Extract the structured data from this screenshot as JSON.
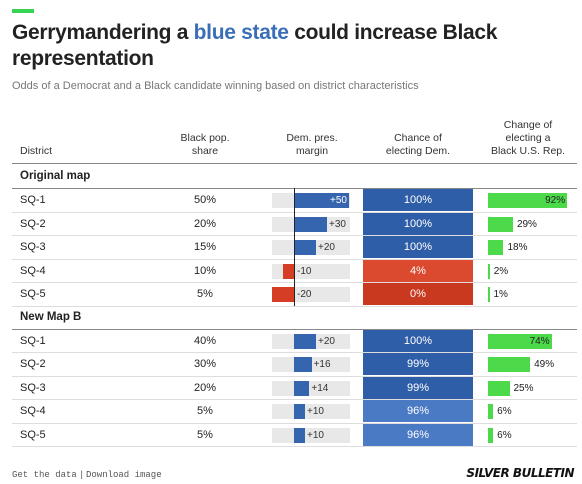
{
  "header": {
    "title_parts": [
      "Gerrymandering a ",
      "blue state",
      " could increase Black representation"
    ],
    "subtitle": "Odds of a Democrat and a Black candidate winning based on district characteristics"
  },
  "table": {
    "columns": [
      "District",
      "Black pop.\nshare",
      "Dem. pres.\nmargin",
      "Chance of\nelecting Dem.",
      "Change of\nelecting a\nBlack U.S. Rep."
    ],
    "groups": [
      {
        "name": "Original map",
        "rows": [
          {
            "district": "SQ-1",
            "black_share": "50%",
            "margin": {
              "value": 50,
              "label": "+50"
            },
            "dem_odds": {
              "value": 100,
              "label": "100%"
            },
            "black_odds": {
              "value": 92,
              "label": "92%"
            }
          },
          {
            "district": "SQ-2",
            "black_share": "20%",
            "margin": {
              "value": 30,
              "label": "+30"
            },
            "dem_odds": {
              "value": 100,
              "label": "100%"
            },
            "black_odds": {
              "value": 29,
              "label": "29%"
            }
          },
          {
            "district": "SQ-3",
            "black_share": "15%",
            "margin": {
              "value": 20,
              "label": "+20"
            },
            "dem_odds": {
              "value": 100,
              "label": "100%"
            },
            "black_odds": {
              "value": 18,
              "label": "18%"
            }
          },
          {
            "district": "SQ-4",
            "black_share": "10%",
            "margin": {
              "value": -10,
              "label": "-10"
            },
            "dem_odds": {
              "value": 4,
              "label": "4%"
            },
            "black_odds": {
              "value": 2,
              "label": "2%"
            }
          },
          {
            "district": "SQ-5",
            "black_share": "5%",
            "margin": {
              "value": -20,
              "label": "-20"
            },
            "dem_odds": {
              "value": 0,
              "label": "0%"
            },
            "black_odds": {
              "value": 1,
              "label": "1%"
            }
          }
        ]
      },
      {
        "name": "New Map B",
        "rows": [
          {
            "district": "SQ-1",
            "black_share": "40%",
            "margin": {
              "value": 20,
              "label": "+20"
            },
            "dem_odds": {
              "value": 100,
              "label": "100%"
            },
            "black_odds": {
              "value": 74,
              "label": "74%"
            }
          },
          {
            "district": "SQ-2",
            "black_share": "30%",
            "margin": {
              "value": 16,
              "label": "+16"
            },
            "dem_odds": {
              "value": 99,
              "label": "99%"
            },
            "black_odds": {
              "value": 49,
              "label": "49%"
            }
          },
          {
            "district": "SQ-3",
            "black_share": "20%",
            "margin": {
              "value": 14,
              "label": "+14"
            },
            "dem_odds": {
              "value": 99,
              "label": "99%"
            },
            "black_odds": {
              "value": 25,
              "label": "25%"
            }
          },
          {
            "district": "SQ-4",
            "black_share": "5%",
            "margin": {
              "value": 10,
              "label": "+10"
            },
            "dem_odds": {
              "value": 96,
              "label": "96%"
            },
            "black_odds": {
              "value": 6,
              "label": "6%"
            }
          },
          {
            "district": "SQ-5",
            "black_share": "5%",
            "margin": {
              "value": 10,
              "label": "+10"
            },
            "dem_odds": {
              "value": 96,
              "label": "96%"
            },
            "black_odds": {
              "value": 6,
              "label": "6%"
            }
          }
        ]
      }
    ]
  },
  "footer": {
    "links": [
      "Get the data",
      "Download image"
    ],
    "logo": "SILVER BULLETIN"
  }
}
